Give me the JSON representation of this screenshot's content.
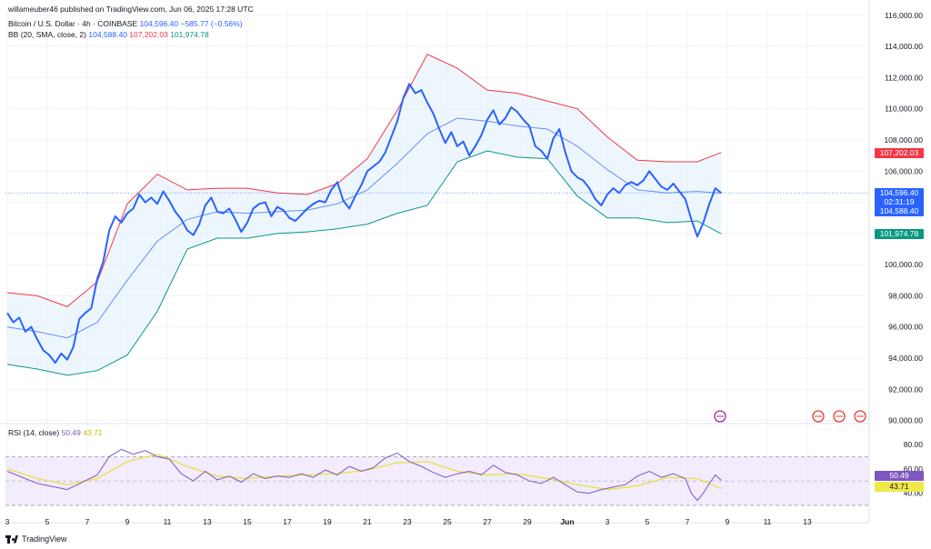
{
  "header": {
    "published": "willameuber46 published on TradingView.com, Jun 06, 2025 17:28 UTC",
    "symbol": "Bitcoin / U.S. Dollar · 4h · COINBASE",
    "symbol_price": "104,596.40",
    "symbol_change": "−585.77 (−0.56%)",
    "bb_label": "BB (20, SMA, close, 2)",
    "bb_basis": "104,588.40",
    "bb_upper": "107,202.03",
    "bb_lower": "101,974.78",
    "rsi_label": "RSI (14, close)",
    "rsi_value": "50.49",
    "rsi_ma": "43.71"
  },
  "tags": {
    "upper": "107,202.03",
    "price": "104,596.40",
    "countdown": "02:31:19",
    "basis": "104,588.40",
    "lower": "101,974.78",
    "rsi": "50.49",
    "rsi_ma": "43.71"
  },
  "footer": {
    "brand": "TradingView"
  },
  "colors": {
    "price": "#2962ff",
    "basis": "#2962ff",
    "upper": "#f23645",
    "lower": "#089981",
    "band_fill": "#e3f0fb",
    "rsi": "#7e57c2",
    "rsi_ma": "#e8e038",
    "rsi_fill": "#ede4fb"
  },
  "chart_data": {
    "type": "line",
    "title": "Bitcoin / U.S. Dollar · 4h · COINBASE",
    "x_ticks": [
      "3",
      "5",
      "7",
      "9",
      "11",
      "13",
      "15",
      "17",
      "19",
      "21",
      "23",
      "25",
      "27",
      "29",
      "Jun",
      "3",
      "5",
      "7",
      "9",
      "11",
      "13"
    ],
    "y_ticks": [
      "116,000.00",
      "114,000.00",
      "112,000.00",
      "110,000.00",
      "108,000.00",
      "106,000.00",
      "104,000.00",
      "102,000.00",
      "100,000.00",
      "98,000.00",
      "96,000.00",
      "94,000.00",
      "92,000.00",
      "90,000.00"
    ],
    "ylim": [
      89800,
      116400
    ],
    "x_axis": "day index from May 3 (Jun 1 = 29)",
    "series": [
      {
        "key": "price",
        "values": [
          [
            0,
            96900
          ],
          [
            0.3,
            96300
          ],
          [
            0.6,
            96600
          ],
          [
            0.9,
            95700
          ],
          [
            1.2,
            96000
          ],
          [
            1.5,
            95200
          ],
          [
            1.8,
            94500
          ],
          [
            2.1,
            94200
          ],
          [
            2.4,
            93700
          ],
          [
            2.7,
            94300
          ],
          [
            3.0,
            93900
          ],
          [
            3.3,
            94700
          ],
          [
            3.6,
            96500
          ],
          [
            3.9,
            96900
          ],
          [
            4.2,
            97200
          ],
          [
            4.5,
            99100
          ],
          [
            4.8,
            100200
          ],
          [
            5.1,
            102200
          ],
          [
            5.4,
            103100
          ],
          [
            5.7,
            102700
          ],
          [
            6.0,
            103300
          ],
          [
            6.3,
            103600
          ],
          [
            6.6,
            104500
          ],
          [
            6.9,
            104000
          ],
          [
            7.2,
            104300
          ],
          [
            7.5,
            103900
          ],
          [
            7.8,
            104700
          ],
          [
            8.1,
            104100
          ],
          [
            8.4,
            103400
          ],
          [
            8.7,
            102900
          ],
          [
            9.0,
            102200
          ],
          [
            9.3,
            101900
          ],
          [
            9.6,
            102600
          ],
          [
            9.9,
            103800
          ],
          [
            10.2,
            104300
          ],
          [
            10.5,
            103400
          ],
          [
            10.8,
            103300
          ],
          [
            11.1,
            103600
          ],
          [
            11.4,
            102900
          ],
          [
            11.7,
            102100
          ],
          [
            12.0,
            102700
          ],
          [
            12.3,
            103600
          ],
          [
            12.6,
            103900
          ],
          [
            12.9,
            104000
          ],
          [
            13.2,
            103100
          ],
          [
            13.5,
            103700
          ],
          [
            13.8,
            103500
          ],
          [
            14.1,
            103000
          ],
          [
            14.4,
            102800
          ],
          [
            14.7,
            103200
          ],
          [
            15.0,
            103600
          ],
          [
            15.3,
            103900
          ],
          [
            15.6,
            104100
          ],
          [
            15.9,
            104000
          ],
          [
            16.2,
            104800
          ],
          [
            16.5,
            105300
          ],
          [
            16.8,
            104100
          ],
          [
            17.1,
            103600
          ],
          [
            17.4,
            104400
          ],
          [
            17.7,
            105100
          ],
          [
            18.0,
            106000
          ],
          [
            18.3,
            106300
          ],
          [
            18.6,
            106600
          ],
          [
            18.9,
            107200
          ],
          [
            19.2,
            108200
          ],
          [
            19.5,
            109200
          ],
          [
            19.8,
            110700
          ],
          [
            20.1,
            111600
          ],
          [
            20.4,
            111000
          ],
          [
            20.7,
            111200
          ],
          [
            21.0,
            110400
          ],
          [
            21.3,
            109700
          ],
          [
            21.6,
            108700
          ],
          [
            21.9,
            107800
          ],
          [
            22.2,
            108500
          ],
          [
            22.5,
            107600
          ],
          [
            22.8,
            107900
          ],
          [
            23.1,
            107000
          ],
          [
            23.4,
            107600
          ],
          [
            23.7,
            108300
          ],
          [
            24.0,
            109300
          ],
          [
            24.3,
            109900
          ],
          [
            24.6,
            109000
          ],
          [
            24.9,
            109400
          ],
          [
            25.2,
            110100
          ],
          [
            25.5,
            109800
          ],
          [
            25.8,
            109300
          ],
          [
            26.1,
            108900
          ],
          [
            26.4,
            107600
          ],
          [
            26.7,
            107300
          ],
          [
            27.0,
            106800
          ],
          [
            27.3,
            108100
          ],
          [
            27.6,
            108700
          ],
          [
            27.9,
            107200
          ],
          [
            28.2,
            106000
          ],
          [
            28.5,
            105600
          ],
          [
            28.8,
            105400
          ],
          [
            29.1,
            104900
          ],
          [
            29.4,
            104200
          ],
          [
            29.7,
            103800
          ],
          [
            30.0,
            104500
          ],
          [
            30.3,
            104900
          ],
          [
            30.6,
            104600
          ],
          [
            30.9,
            105100
          ],
          [
            31.2,
            105300
          ],
          [
            31.5,
            105100
          ],
          [
            31.8,
            105400
          ],
          [
            32.1,
            106000
          ],
          [
            32.4,
            105500
          ],
          [
            32.7,
            105000
          ],
          [
            33.0,
            104800
          ],
          [
            33.3,
            105200
          ],
          [
            33.6,
            104700
          ],
          [
            33.9,
            104200
          ],
          [
            34.2,
            102900
          ],
          [
            34.5,
            101800
          ],
          [
            34.8,
            102700
          ],
          [
            35.1,
            103900
          ],
          [
            35.4,
            104900
          ],
          [
            35.7,
            104596
          ]
        ]
      },
      {
        "key": "basis",
        "values": [
          [
            0,
            96000
          ],
          [
            1.5,
            95700
          ],
          [
            3.0,
            95300
          ],
          [
            4.5,
            96300
          ],
          [
            6.0,
            99000
          ],
          [
            7.5,
            101500
          ],
          [
            9.0,
            102900
          ],
          [
            10.5,
            103400
          ],
          [
            12.0,
            103300
          ],
          [
            13.5,
            103400
          ],
          [
            15.0,
            103500
          ],
          [
            16.5,
            103900
          ],
          [
            18.0,
            104800
          ],
          [
            19.5,
            106500
          ],
          [
            21.0,
            108400
          ],
          [
            22.5,
            109400
          ],
          [
            24.0,
            109200
          ],
          [
            25.5,
            108900
          ],
          [
            27.0,
            108700
          ],
          [
            28.5,
            107600
          ],
          [
            30.0,
            106100
          ],
          [
            31.5,
            104800
          ],
          [
            33.0,
            104600
          ],
          [
            34.5,
            104700
          ],
          [
            35.7,
            104588
          ]
        ]
      },
      {
        "key": "upper",
        "values": [
          [
            0,
            98200
          ],
          [
            1.5,
            98000
          ],
          [
            3.0,
            97300
          ],
          [
            4.5,
            98900
          ],
          [
            6.0,
            103900
          ],
          [
            7.5,
            105800
          ],
          [
            9.0,
            104800
          ],
          [
            10.5,
            104900
          ],
          [
            12.0,
            104900
          ],
          [
            13.5,
            104600
          ],
          [
            15.0,
            104500
          ],
          [
            16.5,
            105200
          ],
          [
            18.0,
            106800
          ],
          [
            19.5,
            109900
          ],
          [
            21.0,
            113500
          ],
          [
            22.5,
            112600
          ],
          [
            24.0,
            111200
          ],
          [
            25.5,
            111000
          ],
          [
            27.0,
            110500
          ],
          [
            28.5,
            110000
          ],
          [
            30.0,
            108200
          ],
          [
            31.5,
            106700
          ],
          [
            33.0,
            106600
          ],
          [
            34.5,
            106600
          ],
          [
            35.7,
            107202
          ]
        ]
      },
      {
        "key": "lower",
        "values": [
          [
            0,
            93600
          ],
          [
            1.5,
            93300
          ],
          [
            3.0,
            92900
          ],
          [
            4.5,
            93200
          ],
          [
            6.0,
            94200
          ],
          [
            7.5,
            97000
          ],
          [
            9.0,
            101000
          ],
          [
            10.5,
            101700
          ],
          [
            12.0,
            101700
          ],
          [
            13.5,
            102000
          ],
          [
            15.0,
            102100
          ],
          [
            16.5,
            102300
          ],
          [
            18.0,
            102600
          ],
          [
            19.5,
            103300
          ],
          [
            21.0,
            103800
          ],
          [
            22.5,
            106600
          ],
          [
            24.0,
            107300
          ],
          [
            25.5,
            106900
          ],
          [
            27.0,
            106800
          ],
          [
            28.5,
            104400
          ],
          [
            30.0,
            103000
          ],
          [
            31.5,
            103000
          ],
          [
            33.0,
            102700
          ],
          [
            34.5,
            102800
          ],
          [
            35.7,
            101975
          ]
        ]
      }
    ],
    "rsi": {
      "title": "RSI (14, close)",
      "y_ticks": [
        "80.00",
        "60.00",
        "40.00"
      ],
      "ylim": [
        27,
        83
      ],
      "bands": [
        70,
        30
      ],
      "mid": 50,
      "rsi_values": [
        [
          0,
          58
        ],
        [
          1.5,
          48
        ],
        [
          3.0,
          43
        ],
        [
          4.5,
          55
        ],
        [
          5.1,
          70
        ],
        [
          5.7,
          76
        ],
        [
          6.3,
          72
        ],
        [
          6.9,
          75
        ],
        [
          7.5,
          70
        ],
        [
          8.1,
          68
        ],
        [
          8.7,
          56
        ],
        [
          9.3,
          50
        ],
        [
          9.9,
          58
        ],
        [
          10.5,
          51
        ],
        [
          11.1,
          54
        ],
        [
          11.7,
          49
        ],
        [
          12.3,
          56
        ],
        [
          12.9,
          52
        ],
        [
          13.5,
          54
        ],
        [
          14.1,
          53
        ],
        [
          14.7,
          56
        ],
        [
          15.3,
          53
        ],
        [
          15.9,
          59
        ],
        [
          16.5,
          55
        ],
        [
          17.1,
          62
        ],
        [
          17.7,
          58
        ],
        [
          18.3,
          61
        ],
        [
          18.9,
          69
        ],
        [
          19.5,
          73
        ],
        [
          20.1,
          66
        ],
        [
          20.7,
          62
        ],
        [
          21.3,
          57
        ],
        [
          21.9,
          53
        ],
        [
          22.5,
          56
        ],
        [
          23.1,
          58
        ],
        [
          23.7,
          55
        ],
        [
          24.3,
          63
        ],
        [
          24.9,
          57
        ],
        [
          25.5,
          55
        ],
        [
          26.1,
          50
        ],
        [
          26.7,
          48
        ],
        [
          27.3,
          53
        ],
        [
          27.9,
          47
        ],
        [
          28.5,
          41
        ],
        [
          29.1,
          40
        ],
        [
          29.7,
          43
        ],
        [
          30.3,
          45
        ],
        [
          30.9,
          47
        ],
        [
          31.5,
          54
        ],
        [
          32.1,
          58
        ],
        [
          32.7,
          53
        ],
        [
          33.3,
          56
        ],
        [
          33.9,
          52
        ],
        [
          34.2,
          40
        ],
        [
          34.5,
          34
        ],
        [
          34.8,
          40
        ],
        [
          35.1,
          48
        ],
        [
          35.4,
          55
        ],
        [
          35.7,
          50.49
        ]
      ],
      "ma_values": [
        [
          0,
          60
        ],
        [
          1.5,
          52
        ],
        [
          3.0,
          47
        ],
        [
          4.5,
          52
        ],
        [
          6.0,
          66
        ],
        [
          7.5,
          72
        ],
        [
          9.0,
          62
        ],
        [
          10.5,
          54
        ],
        [
          12.0,
          52
        ],
        [
          13.5,
          54
        ],
        [
          15.0,
          55
        ],
        [
          16.5,
          56
        ],
        [
          18.0,
          59
        ],
        [
          19.5,
          65
        ],
        [
          21.0,
          66
        ],
        [
          22.5,
          58
        ],
        [
          24.0,
          55
        ],
        [
          25.5,
          56
        ],
        [
          27.0,
          52
        ],
        [
          28.5,
          47
        ],
        [
          30.0,
          43
        ],
        [
          31.5,
          46
        ],
        [
          33.0,
          53
        ],
        [
          34.5,
          52
        ],
        [
          35.7,
          43.71
        ]
      ]
    }
  }
}
